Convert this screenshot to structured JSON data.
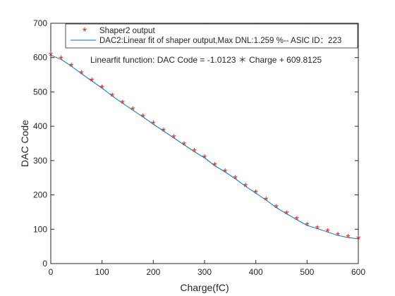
{
  "colors": {
    "markers": "#e02020",
    "fit_line": "#0072bd",
    "axes": "#262626",
    "background": "#ffffff"
  },
  "chart_data": {
    "type": "scatter",
    "title": "",
    "xlabel": "Charge(fC)",
    "ylabel": "DAC Code",
    "xlim": [
      0,
      600
    ],
    "ylim": [
      0,
      700
    ],
    "x_ticks": [
      0,
      100,
      200,
      300,
      400,
      500,
      600
    ],
    "y_ticks": [
      0,
      100,
      200,
      300,
      400,
      500,
      600,
      700
    ],
    "grid": false,
    "legend_position": "top",
    "series": [
      {
        "name": "Shaper2 output",
        "kind": "markers",
        "marker": "*",
        "color": "#e02020",
        "x": [
          0,
          20,
          40,
          60,
          80,
          100,
          120,
          140,
          160,
          180,
          200,
          220,
          240,
          260,
          280,
          300,
          320,
          340,
          360,
          380,
          400,
          420,
          440,
          460,
          480,
          500,
          520,
          540,
          560,
          580,
          600
        ],
        "y": [
          607,
          595,
          575,
          553,
          532,
          511,
          488,
          467,
          447,
          427,
          406,
          386,
          366,
          346,
          326,
          308,
          285,
          267,
          247,
          225,
          205,
          185,
          163,
          145,
          128,
          111,
          102,
          92,
          82,
          76,
          72
        ]
      },
      {
        "name": "DAC2:Linear fit of shaper output,Max DNL:1.259 %-- ASIC ID：223",
        "kind": "line",
        "color": "#0072bd",
        "x": [
          0,
          20,
          40,
          60,
          80,
          100,
          120,
          140,
          160,
          180,
          200,
          220,
          240,
          260,
          280,
          300,
          320,
          340,
          360,
          380,
          400,
          420,
          440,
          460,
          480,
          500,
          520,
          540,
          560,
          580,
          600
        ],
        "y": [
          607,
          595,
          575,
          553,
          532,
          511,
          488,
          467,
          447,
          427,
          406,
          386,
          366,
          346,
          326,
          308,
          285,
          267,
          247,
          225,
          205,
          185,
          163,
          145,
          128,
          111,
          102,
          92,
          82,
          76,
          72
        ]
      }
    ],
    "annotations": [
      "Linearfit function: DAC Code = -1.0123 ＊ Charge + 609.8125"
    ]
  }
}
